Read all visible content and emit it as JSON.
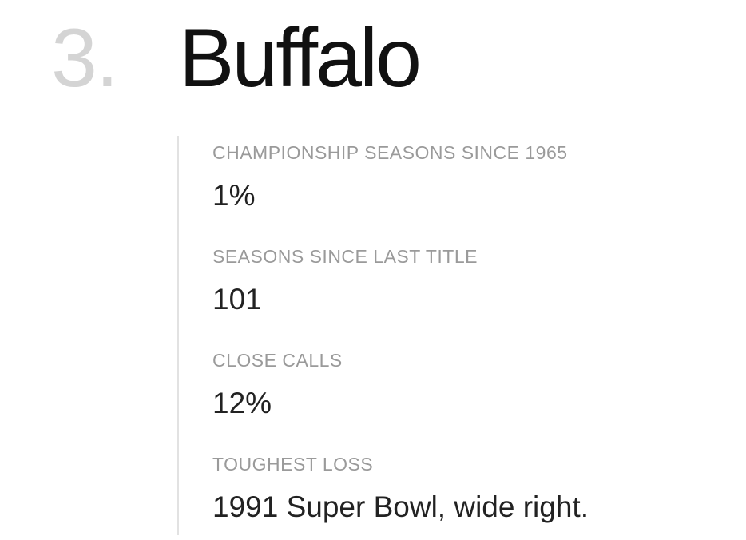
{
  "header": {
    "rank": "3.",
    "team": "Buffalo"
  },
  "stats": [
    {
      "label": "CHAMPIONSHIP SEASONS SINCE 1965",
      "value": "1%"
    },
    {
      "label": "SEASONS SINCE LAST TITLE",
      "value": "101"
    },
    {
      "label": "CLOSE CALLS",
      "value": "12%"
    },
    {
      "label": "TOUGHEST LOSS",
      "value": "1991 Super Bowl, wide right."
    }
  ]
}
